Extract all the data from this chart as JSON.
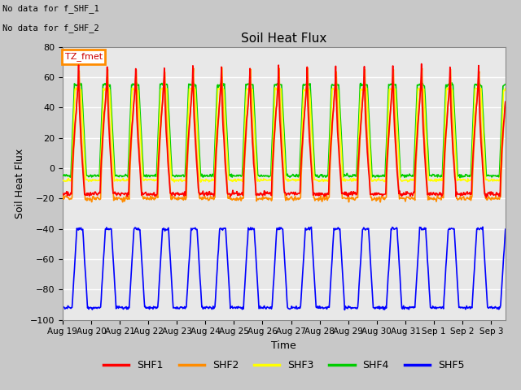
{
  "title": "Soil Heat Flux",
  "xlabel": "Time",
  "ylabel": "Soil Heat Flux",
  "annotations": [
    "No data for f_SHF_1",
    "No data for f_SHF_2"
  ],
  "legend_label": "TZ_fmet",
  "series_labels": [
    "SHF1",
    "SHF2",
    "SHF3",
    "SHF4",
    "SHF5"
  ],
  "colors": {
    "SHF1": "#ff0000",
    "SHF2": "#ff8c00",
    "SHF3": "#ffff00",
    "SHF4": "#00cc00",
    "SHF5": "#0000ff"
  },
  "ylim": [
    -100,
    80
  ],
  "yticks": [
    -100,
    -80,
    -60,
    -40,
    -20,
    0,
    20,
    40,
    60,
    80
  ],
  "background_color": "#e8e8e8",
  "grid_color": "#ffffff",
  "linewidth": 1.2
}
